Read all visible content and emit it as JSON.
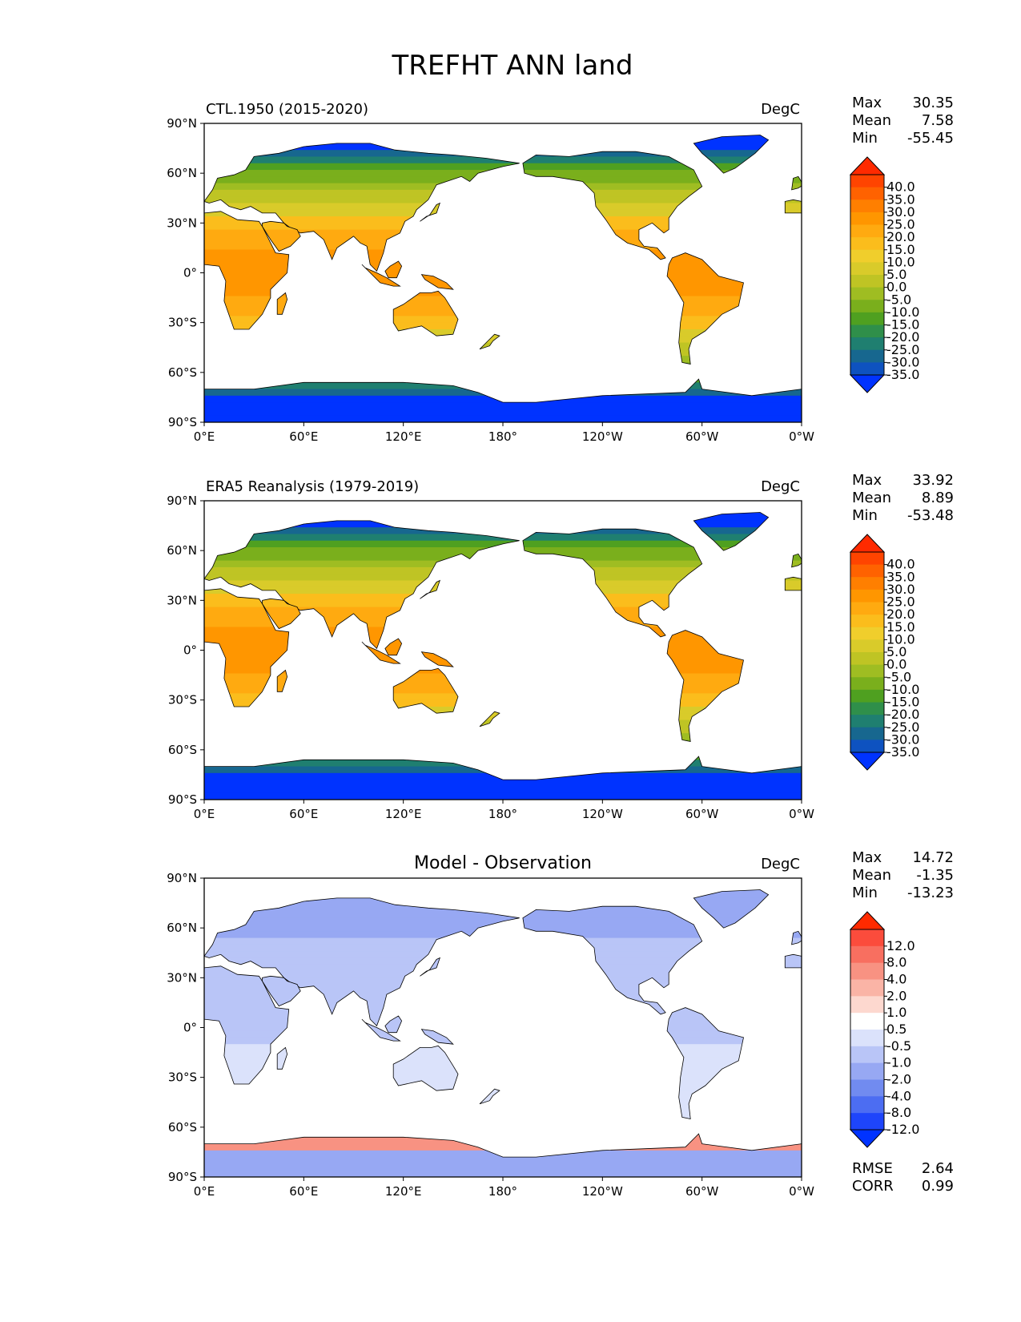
{
  "title": "TREFHT ANN land",
  "lat_ticks": [
    "90°N",
    "60°N",
    "30°N",
    "0°",
    "30°S",
    "60°S",
    "90°S"
  ],
  "lon_ticks": [
    "0°E",
    "60°E",
    "120°E",
    "180°",
    "120°W",
    "60°W",
    "0°W"
  ],
  "panels": [
    {
      "id": "test",
      "left_title": "CTL.1950 (2015-2020)",
      "center_title": "",
      "units": "DegC",
      "stats": {
        "max_label": "Max",
        "max": "30.35",
        "mean_label": "Mean",
        "mean": "7.58",
        "min_label": "Min",
        "min": "-55.45"
      },
      "colorbar": {
        "labels": [
          "40.0",
          "35.0",
          "30.0",
          "25.0",
          "20.0",
          "15.0",
          "10.0",
          "5.0",
          "0.0",
          "-5.0",
          "-10.0",
          "-15.0",
          "-20.0",
          "-25.0",
          "-30.0",
          "-35.0"
        ],
        "colors": [
          "#ff2a00",
          "#ff4400",
          "#ff6200",
          "#ff7f00",
          "#ff9600",
          "#ffaa10",
          "#fbbd1c",
          "#f0ce2c",
          "#d9cb2a",
          "#bfc424",
          "#9fbd22",
          "#7aaf1c",
          "#4fa020",
          "#2f8f4a",
          "#1f7f70",
          "#17678f",
          "#0e52c0",
          "#0033ff"
        ]
      }
    },
    {
      "id": "reference",
      "left_title": "ERA5 Reanalysis (1979-2019)",
      "center_title": "",
      "units": "DegC",
      "stats": {
        "max_label": "Max",
        "max": "33.92",
        "mean_label": "Mean",
        "mean": "8.89",
        "min_label": "Min",
        "min": "-53.48"
      },
      "colorbar": {
        "labels": [
          "40.0",
          "35.0",
          "30.0",
          "25.0",
          "20.0",
          "15.0",
          "10.0",
          "5.0",
          "0.0",
          "-5.0",
          "-10.0",
          "-15.0",
          "-20.0",
          "-25.0",
          "-30.0",
          "-35.0"
        ],
        "colors": [
          "#ff2a00",
          "#ff4400",
          "#ff6200",
          "#ff7f00",
          "#ff9600",
          "#ffaa10",
          "#fbbd1c",
          "#f0ce2c",
          "#d9cb2a",
          "#bfc424",
          "#9fbd22",
          "#7aaf1c",
          "#4fa020",
          "#2f8f4a",
          "#1f7f70",
          "#17678f",
          "#0e52c0",
          "#0033ff"
        ]
      }
    },
    {
      "id": "diff",
      "left_title": "",
      "center_title": "Model - Observation",
      "units": "DegC",
      "stats": {
        "max_label": "Max",
        "max": "14.72",
        "mean_label": "Mean",
        "mean": "-1.35",
        "min_label": "Min",
        "min": "-13.23"
      },
      "metrics": {
        "rmse_label": "RMSE",
        "rmse": "2.64",
        "corr_label": "CORR",
        "corr": "0.99"
      },
      "colorbar": {
        "labels": [
          "12.0",
          "8.0",
          "4.0",
          "2.0",
          "1.0",
          "0.5",
          "-0.5",
          "-1.0",
          "-2.0",
          "-4.0",
          "-8.0",
          "-12.0"
        ],
        "colors": [
          "#ff2a00",
          "#fb4c3c",
          "#f86f60",
          "#f89282",
          "#fab4a6",
          "#fdd8cf",
          "#ffffff",
          "#dbe2fb",
          "#b9c5f7",
          "#97a8f3",
          "#718bf0",
          "#4c6df2",
          "#1e45fb",
          "#0033ff"
        ]
      }
    }
  ]
}
